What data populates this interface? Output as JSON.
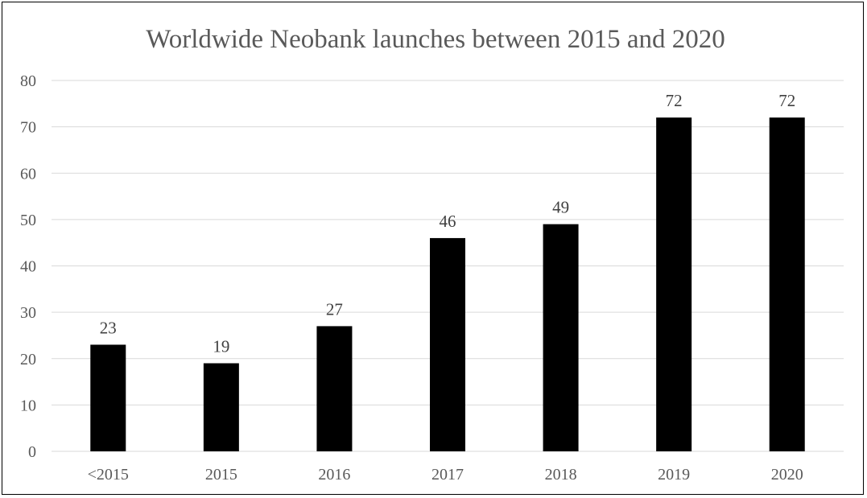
{
  "chart_data": {
    "type": "bar",
    "title": "Worldwide Neobank launches between 2015 and 2020",
    "xlabel": "",
    "ylabel": "",
    "categories": [
      "<2015",
      "2015",
      "2016",
      "2017",
      "2018",
      "2019",
      "2020"
    ],
    "values": [
      23,
      19,
      27,
      46,
      49,
      72,
      72
    ],
    "ylim": [
      0,
      80
    ],
    "yticks": [
      0,
      10,
      20,
      30,
      40,
      50,
      60,
      70,
      80
    ],
    "grid": true,
    "legend": "none",
    "bar_color": "#000000",
    "data_labels": true
  }
}
